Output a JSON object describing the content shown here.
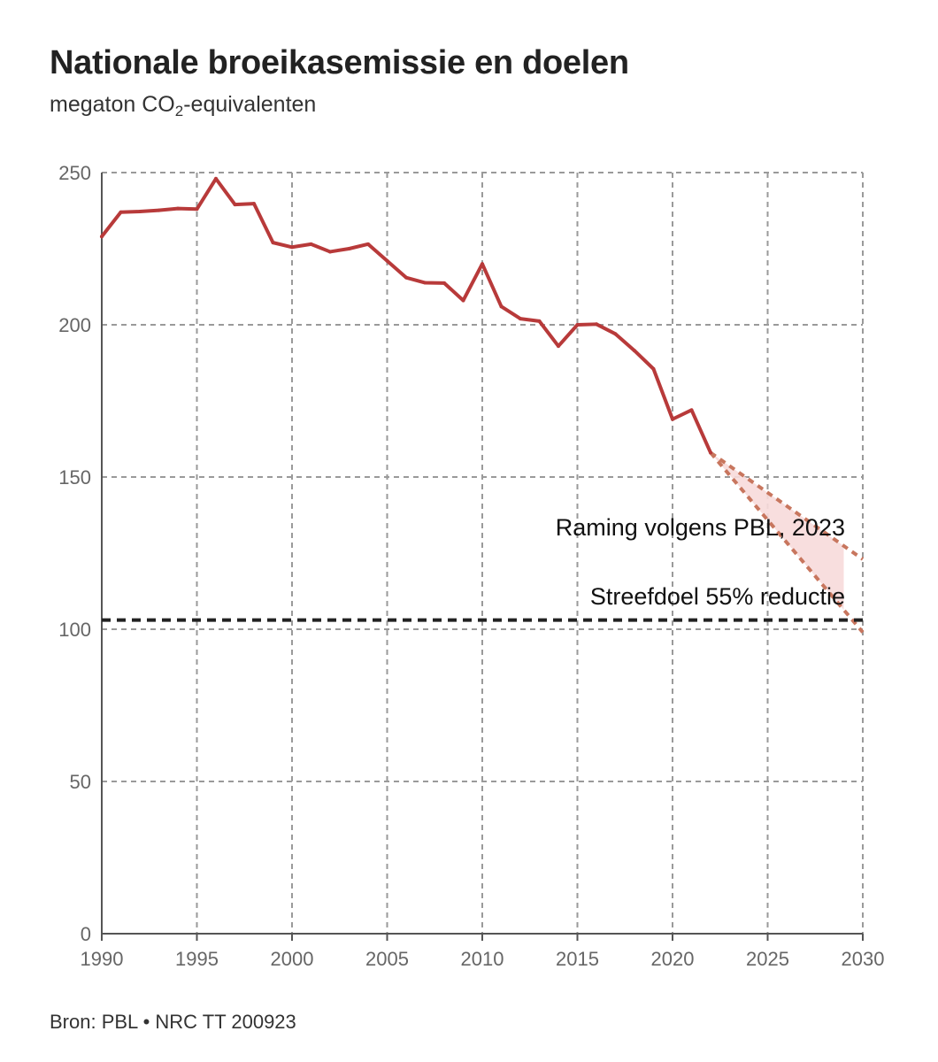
{
  "chart_data": {
    "type": "line",
    "title": "Nationale broeikasemissie en doelen",
    "subtitle_prefix": "megaton CO",
    "subtitle_sub": "2",
    "subtitle_suffix": "-equivalenten",
    "source": "Bron: PBL • NRC TT 200923",
    "xlim": [
      1990,
      2030
    ],
    "ylim": [
      0,
      250
    ],
    "x_ticks": [
      1990,
      1995,
      2000,
      2005,
      2010,
      2015,
      2020,
      2025,
      2030
    ],
    "y_ticks": [
      0,
      50,
      100,
      150,
      200,
      250
    ],
    "grid": true,
    "series": [
      {
        "color": "#b83a3a",
        "points": [
          [
            1990,
            229
          ],
          [
            1991,
            237
          ],
          [
            1992,
            237.2
          ],
          [
            1993,
            237.6
          ],
          [
            1994,
            238.2
          ],
          [
            1995,
            238
          ],
          [
            1996,
            248
          ],
          [
            1997,
            239.5
          ],
          [
            1998,
            239.8
          ],
          [
            1999,
            227
          ],
          [
            2000,
            225.5
          ],
          [
            2001,
            226.5
          ],
          [
            2002,
            224
          ],
          [
            2003,
            225
          ],
          [
            2004,
            226.5
          ],
          [
            2005,
            221
          ],
          [
            2006,
            215.5
          ],
          [
            2007,
            213.8
          ],
          [
            2008,
            213.7
          ],
          [
            2009,
            208
          ],
          [
            2010,
            220
          ],
          [
            2011,
            206
          ],
          [
            2012,
            202
          ],
          [
            2013,
            201.2
          ],
          [
            2014,
            193
          ],
          [
            2015,
            200
          ],
          [
            2016,
            200.2
          ],
          [
            2017,
            197
          ],
          [
            2018,
            191.5
          ],
          [
            2019,
            185.5
          ],
          [
            2020,
            169
          ],
          [
            2021,
            172
          ],
          [
            2022,
            158
          ]
        ]
      }
    ],
    "projection": {
      "label": "Raming volgens PBL, 2023",
      "color": "#c8765e",
      "fill": "#f7dada",
      "upper": [
        [
          2022,
          158
        ],
        [
          2030,
          123
        ]
      ],
      "lower": [
        [
          2022,
          158
        ],
        [
          2030,
          99
        ]
      ],
      "shade_until": 2029
    },
    "target": {
      "label": "Streefdoel 55% reductie",
      "value": 103,
      "color": "#222222"
    }
  }
}
